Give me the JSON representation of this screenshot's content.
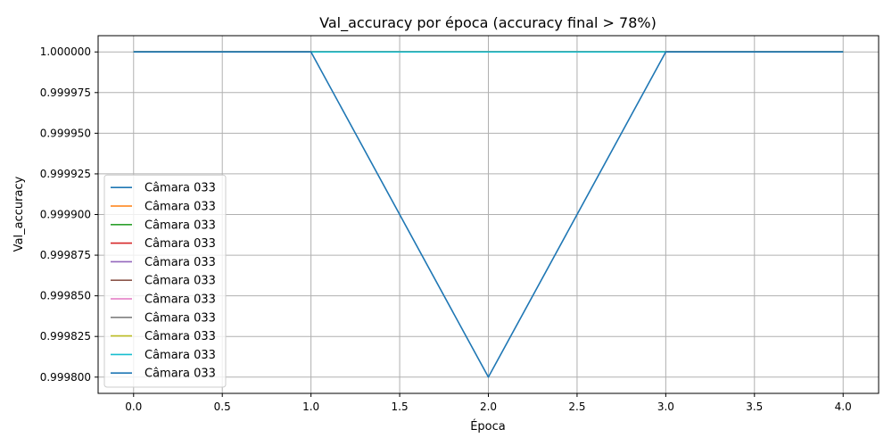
{
  "chart_data": {
    "type": "line",
    "title": "Val_accuracy por época (accuracy final > 78%)",
    "xlabel": "Época",
    "ylabel": "Val_accuracy",
    "xlim": [
      -0.2,
      4.2
    ],
    "ylim": [
      0.99979,
      1.00001
    ],
    "xticks": [
      0.0,
      0.5,
      1.0,
      1.5,
      2.0,
      2.5,
      3.0,
      3.5,
      4.0
    ],
    "xtick_labels": [
      "0.0",
      "0.5",
      "1.0",
      "1.5",
      "2.0",
      "2.5",
      "3.0",
      "3.5",
      "4.0"
    ],
    "yticks": [
      0.9998,
      0.999825,
      0.99985,
      0.999875,
      0.9999,
      0.999925,
      0.99995,
      0.999975,
      1.0
    ],
    "ytick_labels": [
      "0.999800",
      "0.999825",
      "0.999850",
      "0.999875",
      "0.999900",
      "0.999925",
      "0.999950",
      "0.999975",
      "1.000000"
    ],
    "grid": true,
    "legend_position": "lower-left",
    "x": [
      0,
      1,
      2,
      3,
      4
    ],
    "series": [
      {
        "name": "Câmara 033",
        "color": "#1f77b4",
        "values": [
          1.0,
          1.0,
          1.0,
          1.0,
          1.0
        ]
      },
      {
        "name": "Câmara 033",
        "color": "#ff7f0e",
        "values": [
          1.0,
          1.0,
          1.0,
          1.0,
          1.0
        ]
      },
      {
        "name": "Câmara 033",
        "color": "#2ca02c",
        "values": [
          1.0,
          1.0,
          1.0,
          1.0,
          1.0
        ]
      },
      {
        "name": "Câmara 033",
        "color": "#d62728",
        "values": [
          1.0,
          1.0,
          1.0,
          1.0,
          1.0
        ]
      },
      {
        "name": "Câmara 033",
        "color": "#9467bd",
        "values": [
          1.0,
          1.0,
          1.0,
          1.0,
          1.0
        ]
      },
      {
        "name": "Câmara 033",
        "color": "#8c564b",
        "values": [
          1.0,
          1.0,
          1.0,
          1.0,
          1.0
        ]
      },
      {
        "name": "Câmara 033",
        "color": "#e377c2",
        "values": [
          1.0,
          1.0,
          1.0,
          1.0,
          1.0
        ]
      },
      {
        "name": "Câmara 033",
        "color": "#7f7f7f",
        "values": [
          1.0,
          1.0,
          1.0,
          1.0,
          1.0
        ]
      },
      {
        "name": "Câmara 033",
        "color": "#bcbd22",
        "values": [
          1.0,
          1.0,
          1.0,
          1.0,
          1.0
        ]
      },
      {
        "name": "Câmara 033",
        "color": "#17becf",
        "values": [
          1.0,
          1.0,
          1.0,
          1.0,
          1.0
        ]
      },
      {
        "name": "Câmara 033",
        "color": "#1f77b4",
        "values": [
          1.0,
          1.0,
          0.9998,
          1.0,
          1.0
        ]
      }
    ]
  }
}
